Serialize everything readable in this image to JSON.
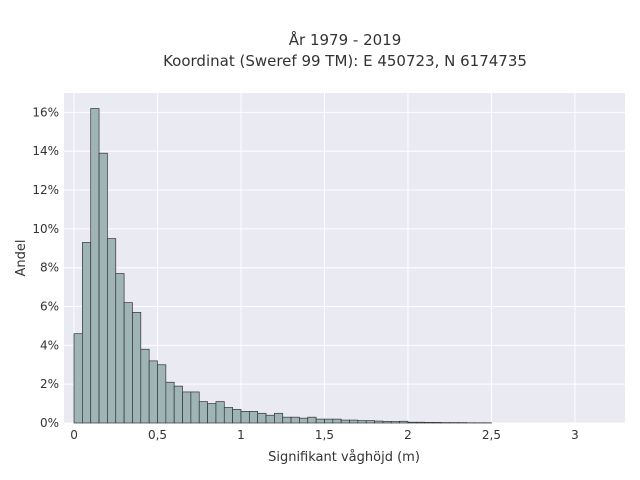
{
  "chart_data": {
    "type": "bar",
    "title_line1": "År 1979 - 2019",
    "title_line2": "Koordinat (Sweref 99 TM): E 450723, N 6174735",
    "xlabel": "Signifikant våghöjd (m)",
    "ylabel": "Andel",
    "bin_width": 0.05,
    "bin_start": 0.0,
    "xlim": [
      -0.06,
      3.3
    ],
    "ylim": [
      0,
      0.17
    ],
    "x_ticks": [
      {
        "value": 0,
        "label": "0"
      },
      {
        "value": 0.5,
        "label": "0,5"
      },
      {
        "value": 1,
        "label": "1"
      },
      {
        "value": 1.5,
        "label": "1,5"
      },
      {
        "value": 2,
        "label": "2"
      },
      {
        "value": 2.5,
        "label": "2,5"
      },
      {
        "value": 3,
        "label": "3"
      }
    ],
    "y_ticks": [
      {
        "value": 0,
        "label": "0%"
      },
      {
        "value": 0.02,
        "label": "2%"
      },
      {
        "value": 0.04,
        "label": "4%"
      },
      {
        "value": 0.06,
        "label": "6%"
      },
      {
        "value": 0.08,
        "label": "8%"
      },
      {
        "value": 0.1,
        "label": "10%"
      },
      {
        "value": 0.12,
        "label": "12%"
      },
      {
        "value": 0.14,
        "label": "14%"
      },
      {
        "value": 0.16,
        "label": "16%"
      }
    ],
    "values": [
      0.046,
      0.093,
      0.162,
      0.139,
      0.095,
      0.077,
      0.062,
      0.057,
      0.038,
      0.032,
      0.03,
      0.021,
      0.019,
      0.016,
      0.016,
      0.011,
      0.01,
      0.011,
      0.008,
      0.007,
      0.006,
      0.006,
      0.005,
      0.004,
      0.005,
      0.003,
      0.003,
      0.0025,
      0.003,
      0.002,
      0.002,
      0.002,
      0.0015,
      0.0015,
      0.0012,
      0.0012,
      0.001,
      0.0008,
      0.0007,
      0.0009,
      0.0004,
      0.0004,
      0.0003,
      0.0003,
      0.0002,
      0.0002,
      0.0002,
      0.0001,
      0.0001,
      0.0001
    ],
    "grid": true,
    "colors": {
      "background": "#eaeaf2",
      "bar_fill": "#9fb5b5",
      "bar_stroke": "#333333",
      "grid": "#ffffff"
    }
  }
}
